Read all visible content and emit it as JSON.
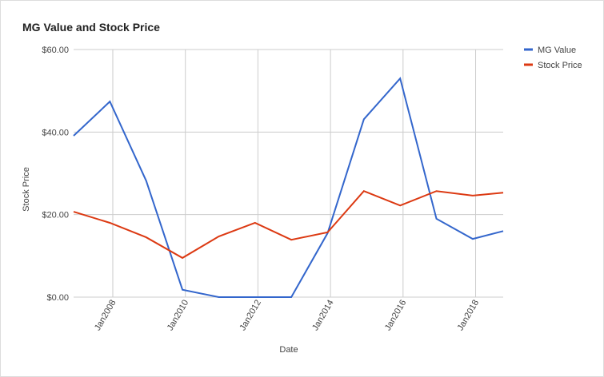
{
  "chart_data": {
    "type": "line",
    "title": "MG Value and Stock Price",
    "x_label": "Date",
    "y_label": "Stock Price",
    "x": [
      2006.92,
      2007.92,
      2008.92,
      2009.92,
      2010.92,
      2011.92,
      2012.92,
      2013.92,
      2014.92,
      2015.92,
      2016.92,
      2017.92,
      2018.76
    ],
    "xlim": [
      2006.92,
      2018.76
    ],
    "xticks": [
      {
        "value": 2008,
        "label": "Jan2008"
      },
      {
        "value": 2010,
        "label": "Jan2010"
      },
      {
        "value": 2012,
        "label": "Jan2012"
      },
      {
        "value": 2014,
        "label": "Jan2014"
      },
      {
        "value": 2016,
        "label": "Jan2016"
      },
      {
        "value": 2018,
        "label": "Jan2018"
      }
    ],
    "ylim": [
      0,
      60
    ],
    "yticks": [
      {
        "value": 0,
        "label": "$0.00"
      },
      {
        "value": 20,
        "label": "$20.00"
      },
      {
        "value": 40,
        "label": "$40.00"
      },
      {
        "value": 60,
        "label": "$60.00"
      }
    ],
    "grid": true,
    "legend": "right",
    "series": [
      {
        "name": "MG Value",
        "color": "#3366cc",
        "values": [
          39.1,
          47.4,
          28.2,
          1.8,
          0,
          0,
          0,
          15.5,
          43.1,
          53,
          19,
          14.1,
          16
        ]
      },
      {
        "name": "Stock Price",
        "color": "#dc3912",
        "values": [
          20.7,
          18,
          14.5,
          9.5,
          14.7,
          18,
          13.9,
          15.7,
          25.7,
          22.2,
          25.7,
          24.6,
          25.3
        ]
      }
    ]
  }
}
